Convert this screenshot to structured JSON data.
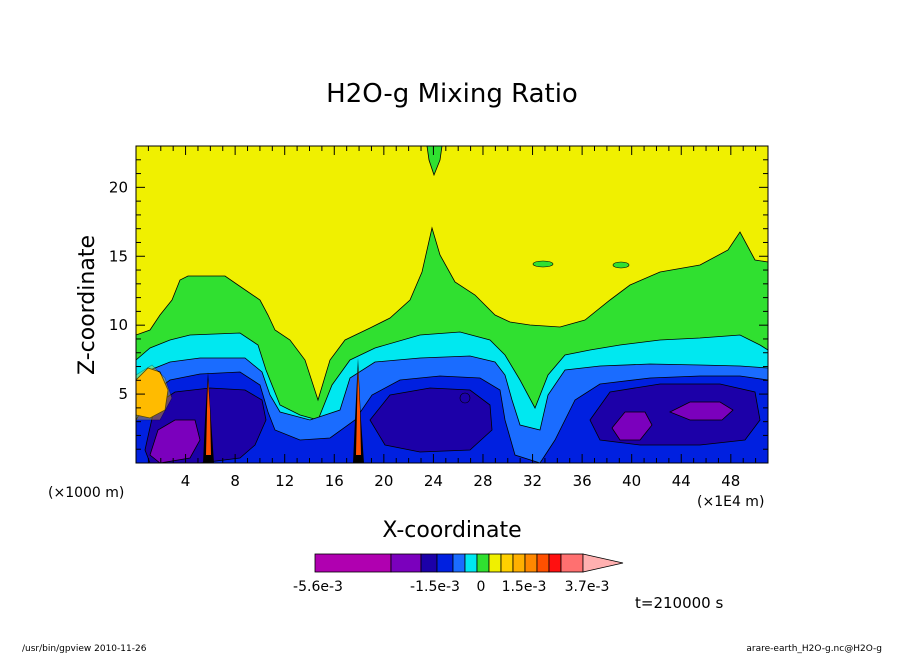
{
  "chart_data": {
    "type": "heatmap",
    "title": "H2O-g Mixing Ratio",
    "xlabel": "X-coordinate",
    "ylabel": "Z-coordinate",
    "x_unit": "(×1E4 m)",
    "y_unit": "(×1000 m)",
    "xlim": [
      0,
      51
    ],
    "ylim": [
      0,
      23
    ],
    "x_ticks": [
      4,
      8,
      12,
      16,
      20,
      24,
      28,
      32,
      36,
      40,
      44,
      48
    ],
    "x_tick_labels": [
      "4",
      "8",
      "12",
      "16",
      "20",
      "24",
      "28",
      "32",
      "36",
      "40",
      "44",
      "48"
    ],
    "y_ticks": [
      5,
      10,
      15,
      20
    ],
    "y_tick_labels": [
      "5",
      "10",
      "15",
      "20"
    ],
    "time_label": "t=210000 s",
    "colorbar": {
      "colors": [
        "#b000b0",
        "#b000b0",
        "#7b00bd",
        "#1c00a8",
        "#0020e0",
        "#1a6cff",
        "#00e8f0",
        "#30e030",
        "#f0f000",
        "#ffd000",
        "#ffb000",
        "#ff8800",
        "#ff5000",
        "#ff1010",
        "#ff7070",
        "#ffb0b0"
      ],
      "labels": [
        "-5.6e-3",
        "-1.5e-3",
        "0",
        "1.5e-3",
        "3.7e-3"
      ]
    }
  },
  "footer": {
    "left": "/usr/bin/gpview  2010-11-26",
    "right": "arare-earth_H2O-g.nc@H2O-g"
  }
}
